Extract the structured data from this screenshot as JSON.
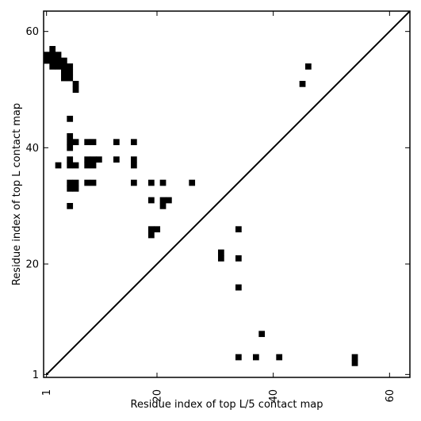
{
  "chart_data": {
    "type": "heatmap",
    "title": "",
    "xlabel": "Residue index of top L/5 contact map",
    "ylabel": "Residue index of top L contact map",
    "xlim": [
      0.5,
      63.5
    ],
    "ylim": [
      0.5,
      63.5
    ],
    "x_ticks": [
      1,
      20,
      40,
      60
    ],
    "y_ticks": [
      1,
      20,
      40,
      60
    ],
    "x_tick_labels": [
      "1",
      "20",
      "40",
      "60"
    ],
    "y_tick_labels": [
      "1",
      "20",
      "40",
      "60"
    ],
    "diagonal": true,
    "grid": false,
    "contact_color": "#000000",
    "upper_triangle_contacts": [
      [
        1,
        56
      ],
      [
        1,
        55
      ],
      [
        2,
        57
      ],
      [
        2,
        56
      ],
      [
        2,
        55
      ],
      [
        2,
        54
      ],
      [
        3,
        56
      ],
      [
        3,
        55
      ],
      [
        3,
        54
      ],
      [
        4,
        55
      ],
      [
        4,
        54
      ],
      [
        4,
        53
      ],
      [
        4,
        52
      ],
      [
        5,
        54
      ],
      [
        5,
        53
      ],
      [
        5,
        52
      ],
      [
        6,
        51
      ],
      [
        6,
        50
      ],
      [
        5,
        45
      ],
      [
        5,
        42
      ],
      [
        5,
        41
      ],
      [
        5,
        40
      ],
      [
        6,
        41
      ],
      [
        3,
        37
      ],
      [
        5,
        38
      ],
      [
        5,
        37
      ],
      [
        6,
        37
      ],
      [
        5,
        34
      ],
      [
        5,
        33
      ],
      [
        6,
        34
      ],
      [
        6,
        33
      ],
      [
        5,
        30
      ],
      [
        8,
        41
      ],
      [
        9,
        41
      ],
      [
        8,
        38
      ],
      [
        9,
        38
      ],
      [
        10,
        38
      ],
      [
        8,
        37
      ],
      [
        9,
        37
      ],
      [
        8,
        34
      ],
      [
        9,
        34
      ],
      [
        13,
        41
      ],
      [
        16,
        41
      ],
      [
        13,
        38
      ],
      [
        16,
        38
      ],
      [
        16,
        37
      ],
      [
        16,
        34
      ],
      [
        19,
        34
      ],
      [
        21,
        34
      ],
      [
        26,
        34
      ],
      [
        19,
        31
      ],
      [
        21,
        31
      ],
      [
        22,
        31
      ],
      [
        21,
        30
      ],
      [
        19,
        26
      ],
      [
        20,
        26
      ],
      [
        19,
        25
      ],
      [
        31,
        22
      ],
      [
        31,
        21
      ],
      [
        34,
        26
      ],
      [
        34,
        21
      ],
      [
        34,
        16
      ],
      [
        38,
        8
      ],
      [
        34,
        4
      ],
      [
        37,
        4
      ],
      [
        41,
        4
      ],
      [
        54,
        4
      ],
      [
        54,
        3
      ],
      [
        45,
        51
      ],
      [
        46,
        54
      ]
    ]
  }
}
